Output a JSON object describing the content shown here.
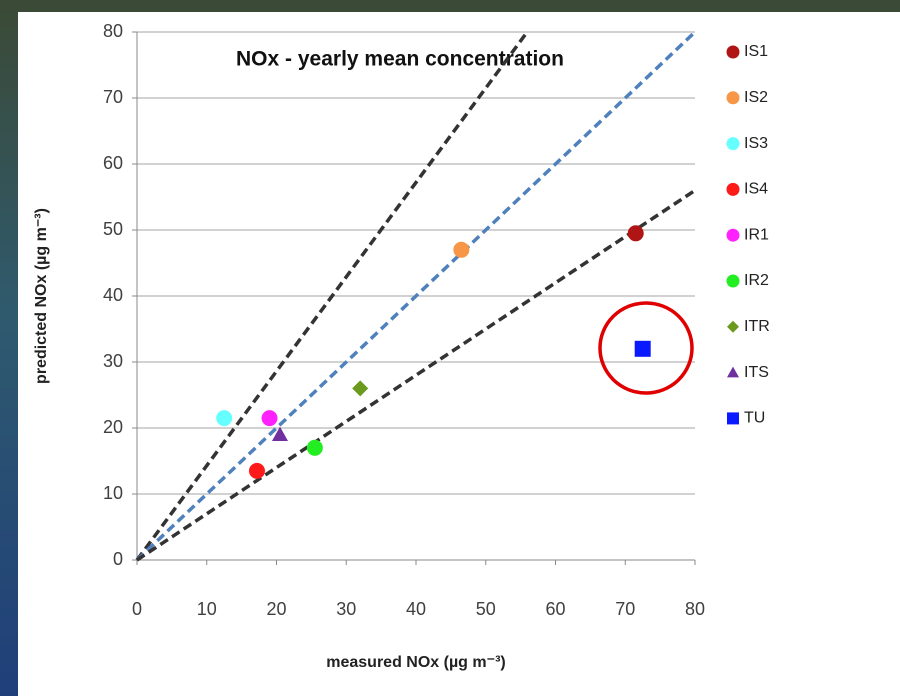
{
  "chart_data": {
    "type": "scatter",
    "title": "NOx - yearly mean concentration",
    "x_label": "measured NOx (µg m⁻³)",
    "y_label": "predicted NOx (µg m⁻³)",
    "xlim": [
      0,
      80
    ],
    "ylim": [
      0,
      80
    ],
    "xticks": [
      0,
      10,
      20,
      30,
      40,
      50,
      60,
      70,
      80
    ],
    "yticks": [
      0,
      10,
      20,
      30,
      40,
      50,
      60,
      70,
      80
    ],
    "grid": true,
    "legend": "right",
    "reference_lines": [
      {
        "slope": 1.43,
        "color": "#333333"
      },
      {
        "slope": 1,
        "color": "#4f81bd"
      },
      {
        "slope": 0.7,
        "color": "#333333"
      }
    ],
    "series": [
      {
        "name": "IS1",
        "color": "#b01515",
        "marker": "circle",
        "x": [
          71.5
        ],
        "y": [
          49.5
        ]
      },
      {
        "name": "IS2",
        "color": "#f79646",
        "marker": "circle",
        "x": [
          46.5
        ],
        "y": [
          47
        ]
      },
      {
        "name": "IS3",
        "color": "#66ffff",
        "marker": "circle",
        "x": [
          12.5
        ],
        "y": [
          21.5
        ]
      },
      {
        "name": "IS4",
        "color": "#ff1a1a",
        "marker": "circle",
        "x": [
          17.2
        ],
        "y": [
          13.5
        ]
      },
      {
        "name": "IR1",
        "color": "#ff22ff",
        "marker": "circle",
        "x": [
          19
        ],
        "y": [
          21.5
        ]
      },
      {
        "name": "IR2",
        "color": "#22ee22",
        "marker": "circle",
        "x": [
          25.5
        ],
        "y": [
          17
        ]
      },
      {
        "name": "ITR",
        "color": "#6b9a1f",
        "marker": "diamond",
        "x": [
          32
        ],
        "y": [
          26
        ]
      },
      {
        "name": "ITS",
        "color": "#7030a0",
        "marker": "triangle",
        "x": [
          20.5
        ],
        "y": [
          19
        ]
      },
      {
        "name": "TU",
        "color": "#0a1aff",
        "marker": "square",
        "x": [
          72.5
        ],
        "y": [
          32
        ]
      }
    ]
  }
}
